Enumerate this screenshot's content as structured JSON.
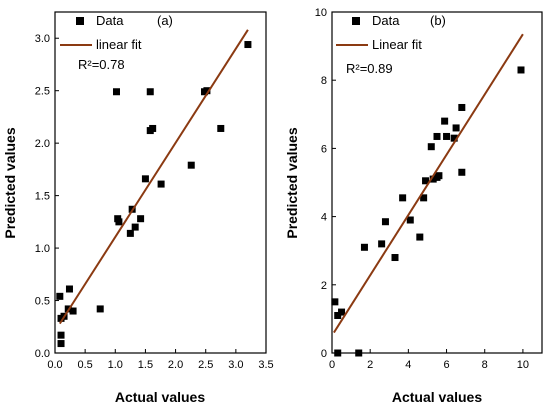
{
  "colors": {
    "marker": "#000000",
    "fit_line": "#8B3A12",
    "background": "#ffffff"
  },
  "chart_data": [
    {
      "type": "scatter",
      "panel_label": "(a)",
      "xlabel": "Actual values",
      "ylabel": "Predicted values",
      "xlim": [
        0.0,
        3.5
      ],
      "ylim": [
        0.0,
        3.25
      ],
      "xticks": [
        "0.0",
        "0.5",
        "1.0",
        "1.5",
        "2.0",
        "2.5",
        "3.0",
        "3.5"
      ],
      "yticks": [
        "0.0",
        "0.5",
        "1.0",
        "1.5",
        "2.0",
        "2.5",
        "3.0"
      ],
      "legend_position": "top-left",
      "series": [
        {
          "name": "Data",
          "points": [
            [
              0.08,
              0.54
            ],
            [
              0.1,
              0.33
            ],
            [
              0.1,
              0.17
            ],
            [
              0.1,
              0.09
            ],
            [
              0.15,
              0.35
            ],
            [
              0.22,
              0.42
            ],
            [
              0.24,
              0.61
            ],
            [
              0.3,
              0.4
            ],
            [
              0.75,
              0.42
            ],
            [
              1.02,
              2.49
            ],
            [
              1.04,
              1.28
            ],
            [
              1.06,
              1.25
            ],
            [
              1.25,
              1.14
            ],
            [
              1.28,
              1.37
            ],
            [
              1.33,
              1.2
            ],
            [
              1.42,
              1.28
            ],
            [
              1.5,
              1.66
            ],
            [
              1.58,
              2.49
            ],
            [
              1.58,
              2.12
            ],
            [
              1.62,
              2.14
            ],
            [
              1.76,
              1.61
            ],
            [
              2.26,
              1.79
            ],
            [
              2.48,
              2.49
            ],
            [
              2.52,
              2.5
            ],
            [
              2.75,
              2.14
            ],
            [
              3.2,
              2.94
            ]
          ]
        },
        {
          "name": "linear fit",
          "x": [
            0.08,
            3.2
          ],
          "y": [
            0.28,
            3.08
          ]
        }
      ],
      "annotation": "R²=0.78"
    },
    {
      "type": "scatter",
      "panel_label": "(b)",
      "xlabel": "Actual values",
      "ylabel": "Predicted values",
      "xlim": [
        0,
        11
      ],
      "ylim": [
        0,
        10
      ],
      "xticks": [
        "0",
        "2",
        "4",
        "6",
        "8",
        "10"
      ],
      "yticks": [
        "0",
        "2",
        "4",
        "6",
        "8",
        "10"
      ],
      "legend_position": "top-left",
      "series": [
        {
          "name": "Data",
          "points": [
            [
              0.15,
              1.5
            ],
            [
              0.3,
              1.1
            ],
            [
              0.5,
              1.2
            ],
            [
              0.3,
              0.0
            ],
            [
              1.4,
              0.0
            ],
            [
              1.7,
              3.1
            ],
            [
              2.6,
              3.2
            ],
            [
              2.8,
              3.85
            ],
            [
              3.3,
              2.8
            ],
            [
              3.7,
              4.55
            ],
            [
              4.1,
              3.9
            ],
            [
              4.6,
              3.4
            ],
            [
              4.8,
              4.55
            ],
            [
              4.9,
              5.05
            ],
            [
              5.3,
              5.1
            ],
            [
              5.2,
              6.05
            ],
            [
              5.5,
              5.15
            ],
            [
              5.6,
              5.2
            ],
            [
              5.5,
              6.35
            ],
            [
              5.9,
              6.8
            ],
            [
              6.0,
              6.35
            ],
            [
              6.4,
              6.3
            ],
            [
              6.5,
              6.6
            ],
            [
              6.8,
              7.2
            ],
            [
              6.8,
              5.3
            ],
            [
              9.9,
              8.3
            ]
          ]
        },
        {
          "name": "Linear fit",
          "x": [
            0.1,
            10.0
          ],
          "y": [
            0.6,
            9.35
          ]
        }
      ],
      "annotation": "R²=0.89"
    }
  ]
}
